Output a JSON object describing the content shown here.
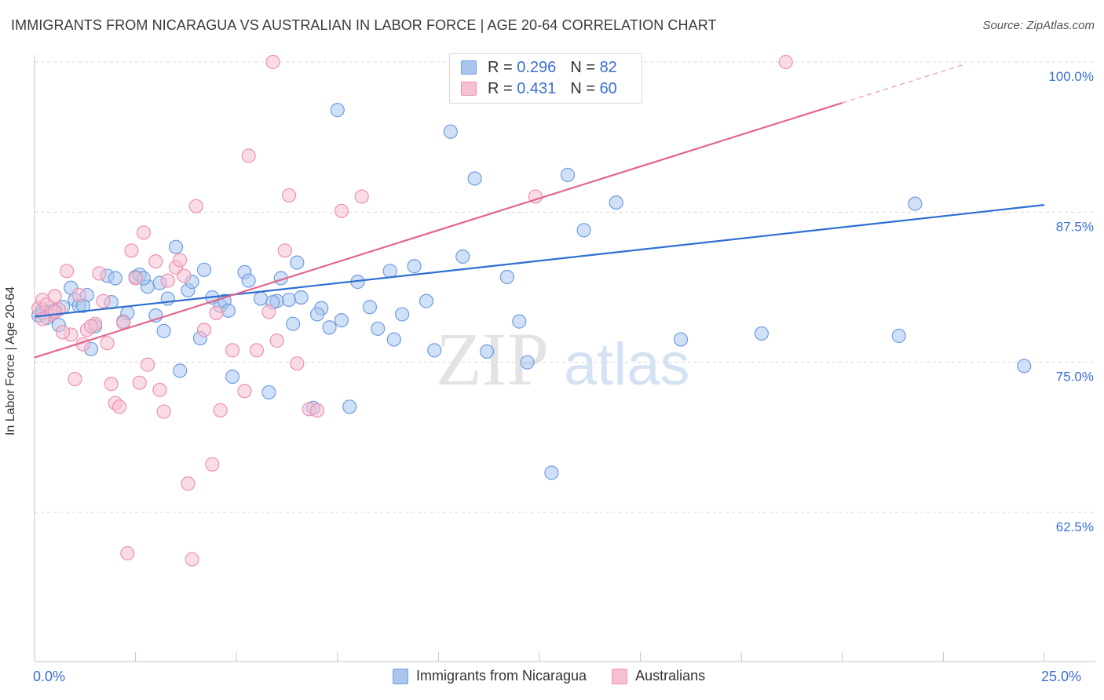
{
  "title": "IMMIGRANTS FROM NICARAGUA VS AUSTRALIAN IN LABOR FORCE | AGE 20-64 CORRELATION CHART",
  "source": "Source: ZipAtlas.com",
  "watermark": {
    "zip": "ZIP",
    "atlas": "atlas"
  },
  "legend_top": [
    {
      "r_label": "R =",
      "r_value": "0.296",
      "n_label": "N =",
      "n_value": "82"
    },
    {
      "r_label": "R =",
      "r_value": "0.431",
      "n_label": "N =",
      "n_value": "60"
    }
  ],
  "colors": {
    "blue_fill": "#a9c6ee",
    "blue_stroke": "#6f9de0",
    "blue_line": "#2f6fd1",
    "pink_fill": "#f6bfd2",
    "pink_stroke": "#eb92b2",
    "pink_line": "#e2668f",
    "tick_text": "#3b6fd0",
    "grid": "#d8d8d8"
  },
  "chart_data": {
    "type": "scatter",
    "title": "IMMIGRANTS FROM NICARAGUA VS AUSTRALIAN IN LABOR FORCE | AGE 20-64 CORRELATION CHART",
    "xlabel": "",
    "ylabel": "In Labor Force | Age 20-64",
    "xlim": [
      0,
      25
    ],
    "ylim": [
      50.0,
      100.0
    ],
    "x_tick_labels": [
      "0.0%",
      "25.0%"
    ],
    "y_ticks": [
      62.5,
      75.0,
      87.5,
      100.0
    ],
    "y_tick_labels": [
      "62.5%",
      "75.0%",
      "87.5%",
      "100.0%"
    ],
    "grid": true,
    "legend_position": "top-center and bottom",
    "series": [
      {
        "name": "Immigrants from Nicaragua",
        "R": 0.296,
        "N": 82,
        "trend": {
          "x": [
            0,
            25
          ],
          "y": [
            78.8,
            88.1
          ]
        },
        "points": [
          [
            0.1,
            78.9
          ],
          [
            0.2,
            79.4
          ],
          [
            0.2,
            79.1
          ],
          [
            0.3,
            78.7
          ],
          [
            0.4,
            79.2
          ],
          [
            0.5,
            79.3
          ],
          [
            0.6,
            78.1
          ],
          [
            0.7,
            79.6
          ],
          [
            0.9,
            81.2
          ],
          [
            1.0,
            80.2
          ],
          [
            1.1,
            79.7
          ],
          [
            1.3,
            80.6
          ],
          [
            1.4,
            76.1
          ],
          [
            1.5,
            78.0
          ],
          [
            1.8,
            82.2
          ],
          [
            1.9,
            80.0
          ],
          [
            2.0,
            82.0
          ],
          [
            2.2,
            78.4
          ],
          [
            2.3,
            79.1
          ],
          [
            2.5,
            82.1
          ],
          [
            2.6,
            82.3
          ],
          [
            2.8,
            81.3
          ],
          [
            3.0,
            78.9
          ],
          [
            3.1,
            81.6
          ],
          [
            3.2,
            77.6
          ],
          [
            3.3,
            80.3
          ],
          [
            3.5,
            84.6
          ],
          [
            3.6,
            74.3
          ],
          [
            3.8,
            81.0
          ],
          [
            3.9,
            81.7
          ],
          [
            4.1,
            77.0
          ],
          [
            4.2,
            82.7
          ],
          [
            4.4,
            80.4
          ],
          [
            4.6,
            79.7
          ],
          [
            4.7,
            80.1
          ],
          [
            4.8,
            79.3
          ],
          [
            4.9,
            73.8
          ],
          [
            5.2,
            82.5
          ],
          [
            5.3,
            81.8
          ],
          [
            5.6,
            80.3
          ],
          [
            5.8,
            72.5
          ],
          [
            6.0,
            80.1
          ],
          [
            6.1,
            82.0
          ],
          [
            6.3,
            80.2
          ],
          [
            6.5,
            83.3
          ],
          [
            6.6,
            80.4
          ],
          [
            6.9,
            71.2
          ],
          [
            7.1,
            79.5
          ],
          [
            7.3,
            77.9
          ],
          [
            7.5,
            96.0
          ],
          [
            7.6,
            78.5
          ],
          [
            7.8,
            71.3
          ],
          [
            8.0,
            81.7
          ],
          [
            8.3,
            79.6
          ],
          [
            8.5,
            77.8
          ],
          [
            8.8,
            82.6
          ],
          [
            8.9,
            76.9
          ],
          [
            9.1,
            79.0
          ],
          [
            9.4,
            83.0
          ],
          [
            9.7,
            80.1
          ],
          [
            9.9,
            76.0
          ],
          [
            10.3,
            94.2
          ],
          [
            10.6,
            83.8
          ],
          [
            10.9,
            90.3
          ],
          [
            11.2,
            75.9
          ],
          [
            11.7,
            82.1
          ],
          [
            12.0,
            78.4
          ],
          [
            12.2,
            75.0
          ],
          [
            12.8,
            65.8
          ],
          [
            13.2,
            90.6
          ],
          [
            13.6,
            86.0
          ],
          [
            14.4,
            88.3
          ],
          [
            16.0,
            76.9
          ],
          [
            18.0,
            77.4
          ],
          [
            21.4,
            77.2
          ],
          [
            21.8,
            88.2
          ],
          [
            24.5,
            74.7
          ],
          [
            1.2,
            79.7
          ],
          [
            2.7,
            82.0
          ],
          [
            5.9,
            80.0
          ],
          [
            7.0,
            79.0
          ],
          [
            6.4,
            78.2
          ]
        ]
      },
      {
        "name": "Australians",
        "R": 0.431,
        "N": 60,
        "trend": {
          "x": [
            0,
            20
          ],
          "y": [
            75.4,
            96.6
          ]
        },
        "points": [
          [
            0.1,
            79.5
          ],
          [
            0.2,
            80.2
          ],
          [
            0.3,
            79.8
          ],
          [
            0.4,
            79.0
          ],
          [
            0.5,
            80.5
          ],
          [
            0.6,
            79.4
          ],
          [
            0.8,
            82.6
          ],
          [
            0.9,
            77.3
          ],
          [
            1.0,
            73.6
          ],
          [
            1.1,
            80.6
          ],
          [
            1.2,
            76.5
          ],
          [
            1.3,
            77.7
          ],
          [
            1.5,
            78.2
          ],
          [
            1.6,
            82.4
          ],
          [
            1.7,
            80.1
          ],
          [
            1.8,
            76.6
          ],
          [
            1.9,
            73.2
          ],
          [
            2.0,
            71.6
          ],
          [
            2.1,
            71.3
          ],
          [
            2.2,
            78.3
          ],
          [
            2.4,
            84.3
          ],
          [
            2.5,
            82.0
          ],
          [
            2.6,
            73.3
          ],
          [
            2.7,
            85.8
          ],
          [
            2.8,
            74.8
          ],
          [
            3.0,
            83.4
          ],
          [
            3.1,
            72.7
          ],
          [
            3.2,
            70.9
          ],
          [
            3.3,
            81.8
          ],
          [
            3.5,
            82.9
          ],
          [
            3.6,
            83.5
          ],
          [
            3.7,
            82.2
          ],
          [
            3.8,
            64.9
          ],
          [
            3.9,
            58.6
          ],
          [
            4.0,
            88.0
          ],
          [
            4.2,
            77.7
          ],
          [
            4.4,
            66.5
          ],
          [
            4.5,
            79.1
          ],
          [
            4.6,
            71.0
          ],
          [
            4.9,
            76.0
          ],
          [
            5.2,
            72.6
          ],
          [
            5.3,
            92.2
          ],
          [
            5.5,
            76.0
          ],
          [
            5.8,
            79.2
          ],
          [
            6.0,
            76.8
          ],
          [
            6.2,
            84.3
          ],
          [
            6.3,
            88.9
          ],
          [
            6.5,
            74.9
          ],
          [
            6.8,
            71.1
          ],
          [
            7.0,
            71.0
          ],
          [
            7.6,
            87.6
          ],
          [
            8.1,
            88.8
          ],
          [
            12.4,
            88.8
          ],
          [
            5.9,
            100.0
          ],
          [
            18.6,
            100.0
          ],
          [
            2.3,
            59.1
          ],
          [
            0.2,
            78.6
          ],
          [
            0.5,
            79.2
          ],
          [
            1.4,
            78.0
          ],
          [
            0.7,
            77.5
          ]
        ]
      }
    ]
  },
  "legend_bottom": [
    {
      "label": "Immigrants from Nicaragua"
    },
    {
      "label": "Australians"
    }
  ]
}
